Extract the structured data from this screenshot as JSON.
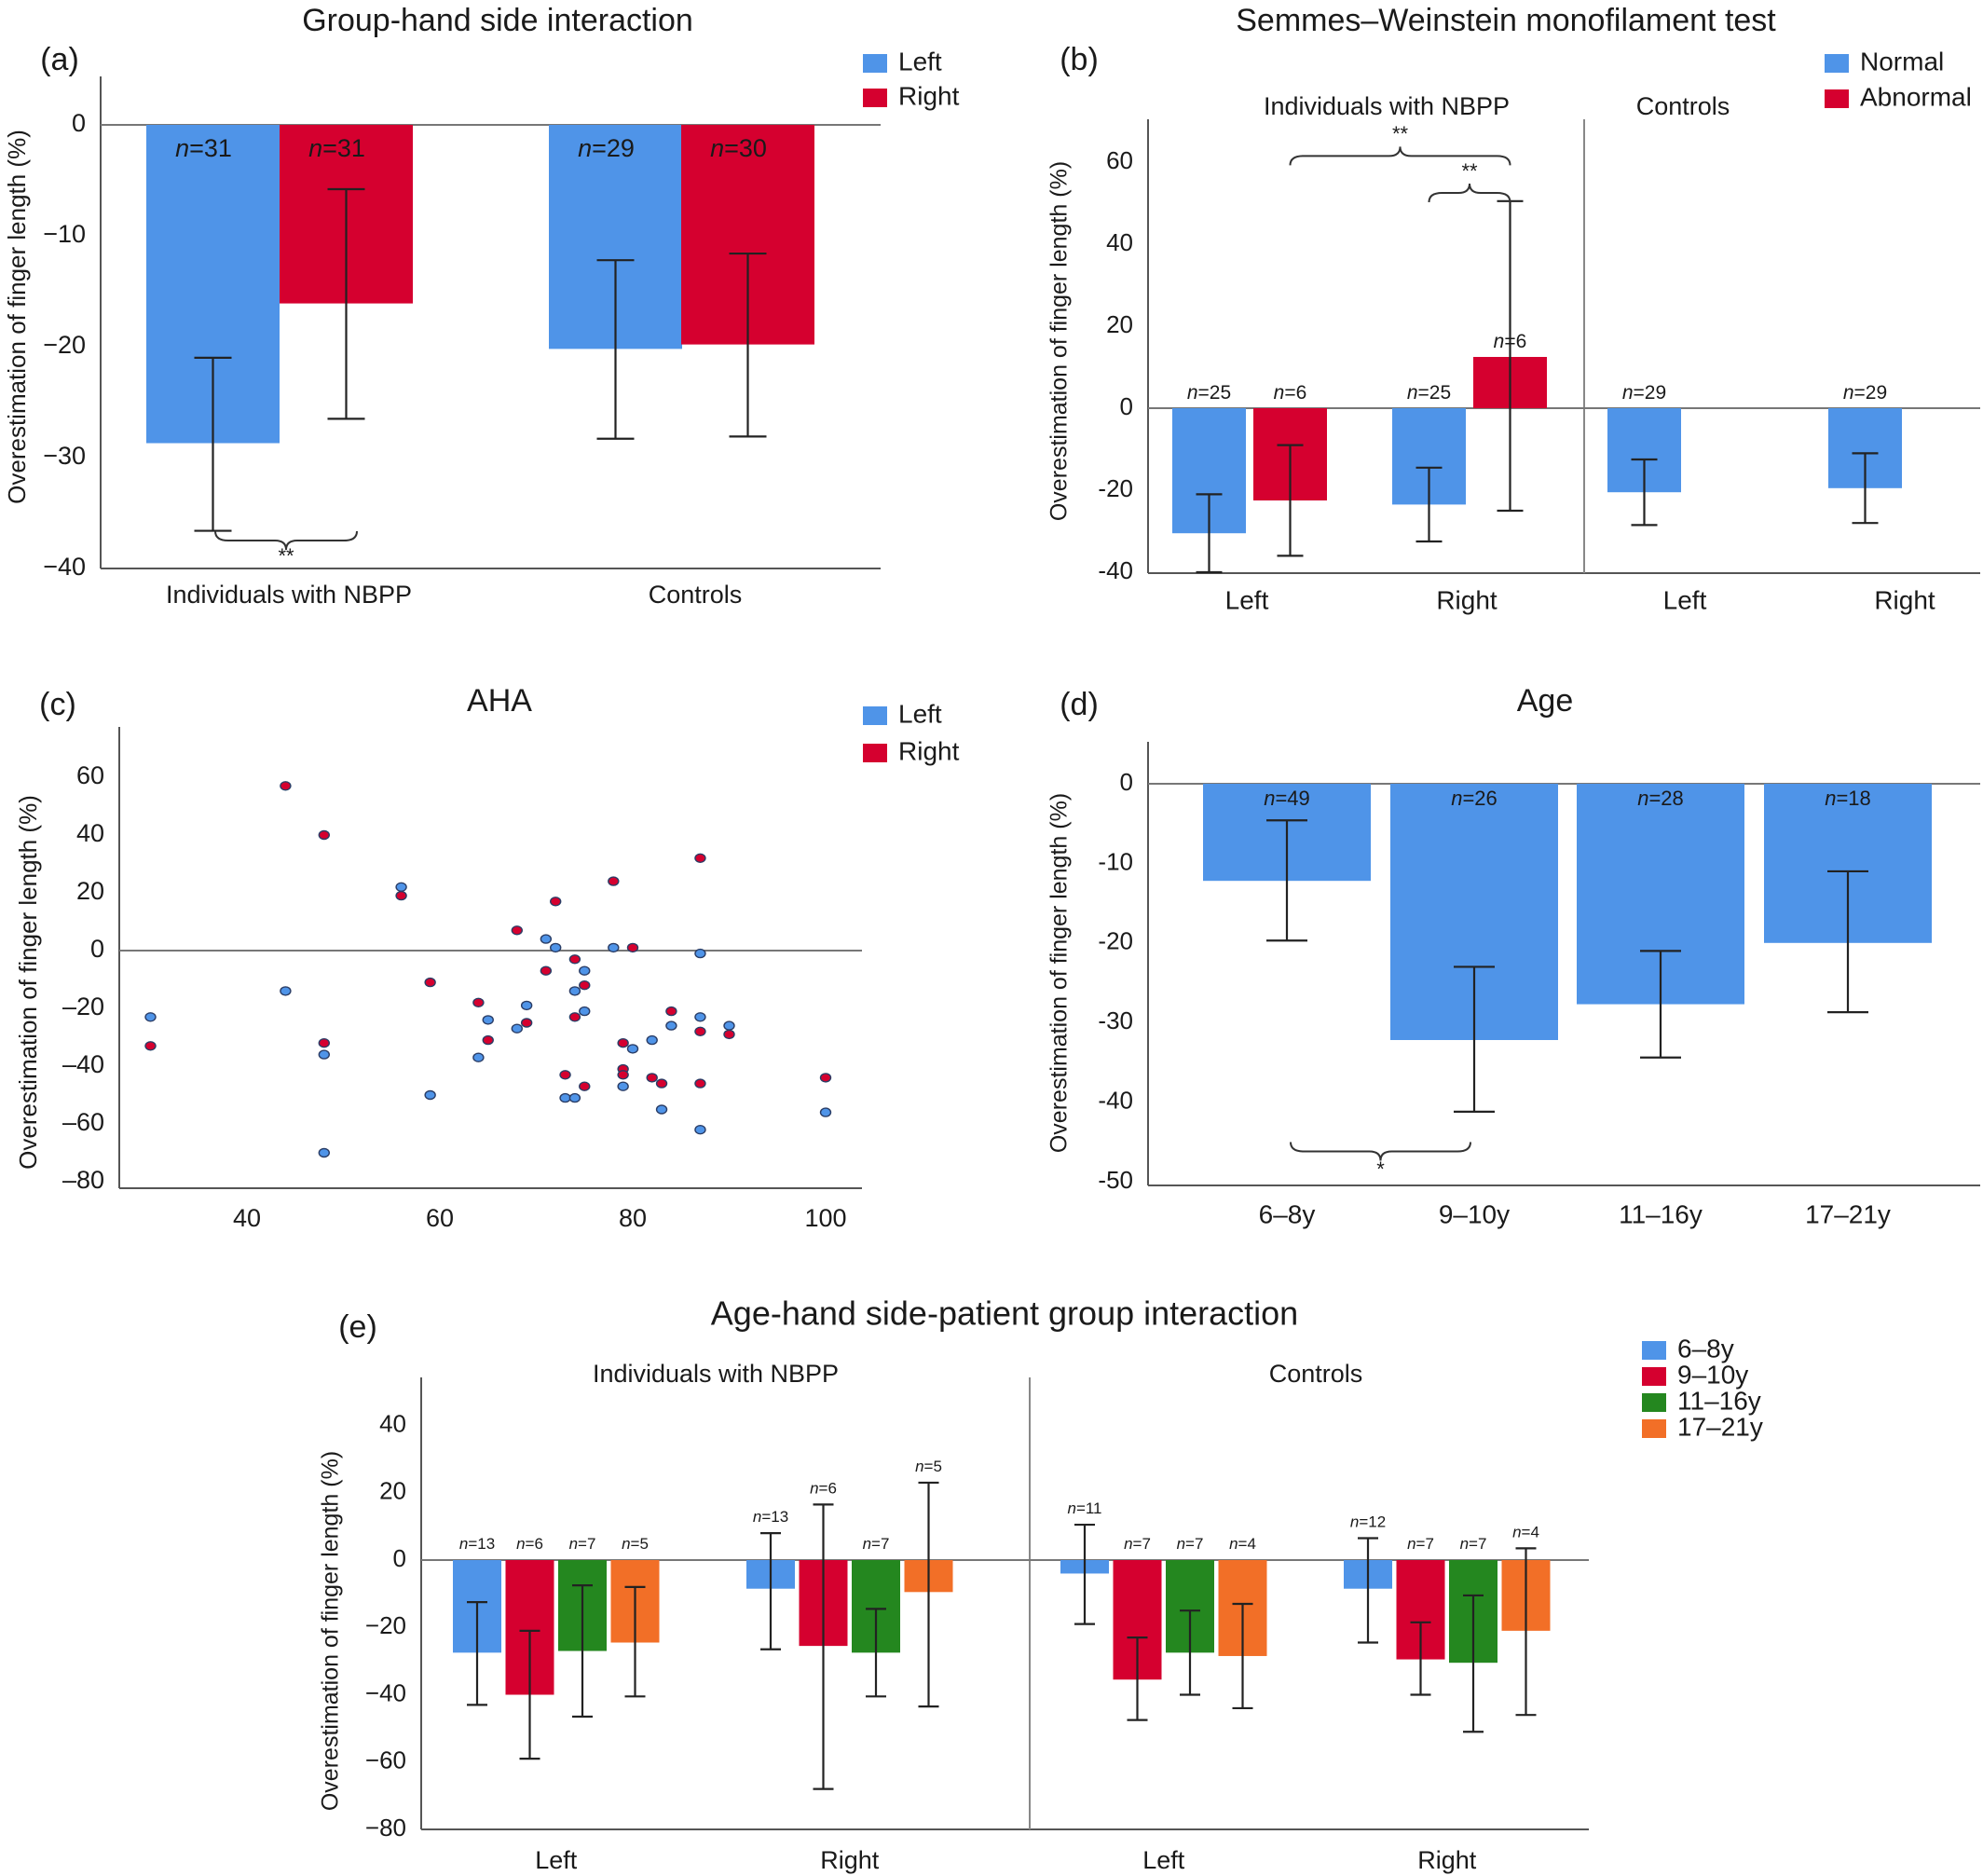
{
  "colors": {
    "blue": "#4f94e8",
    "red": "#d5002f",
    "green": "#24871f",
    "orange": "#f26f27"
  },
  "chart_data": [
    {
      "id": "a",
      "type": "bar",
      "panel_label": "(a)",
      "title": "Group-hand side interaction",
      "ylabel": "Overestimation of finger length (%)",
      "ylim": [
        -40,
        4
      ],
      "yticks": [
        0,
        -10,
        -20,
        -30,
        -40
      ],
      "ytick_labels": [
        "0",
        "−10",
        "−20",
        "−30",
        "−40"
      ],
      "legend": [
        "Left",
        "Right"
      ],
      "legend_position": "top-right",
      "categories": [
        "Individuals with NBPP",
        "Controls"
      ],
      "series": [
        {
          "name": "Left",
          "color": "blue",
          "values": [
            -28.7,
            -20.2
          ],
          "err_low": [
            -36.6,
            -28.3
          ],
          "err_high": [
            -21.0,
            -12.2
          ],
          "n": [
            "n=31",
            "n=29"
          ]
        },
        {
          "name": "Right",
          "color": "red",
          "values": [
            -16.1,
            -19.8
          ],
          "err_low": [
            -26.5,
            -28.1
          ],
          "err_high": [
            -5.8,
            -11.6
          ],
          "n": [
            "n=31",
            "n=30"
          ]
        }
      ],
      "annotations": [
        {
          "text": "**",
          "group": 0,
          "from": 0,
          "to": 1,
          "y": -37.4
        }
      ]
    },
    {
      "id": "b",
      "type": "bar",
      "panel_label": "(b)",
      "title": "Semmes–Weinstein monofilament test",
      "ylabel": "Overestimation of finger length (%)",
      "ylim": [
        -40,
        70
      ],
      "yticks": [
        60,
        40,
        20,
        0,
        -20,
        -40
      ],
      "ytick_labels": [
        "60",
        "40",
        "20",
        "0",
        "-20",
        "-40"
      ],
      "legend": [
        "Normal",
        "Abnormal"
      ],
      "legend_position": "top-right",
      "subpanels": [
        {
          "label": "Individuals with NBPP",
          "categories": [
            "Left",
            "Right"
          ],
          "bars": [
            {
              "cat": 0,
              "slot": 0,
              "color": "blue",
              "value": -30.5,
              "err_low": -40.0,
              "err_high": -21.0,
              "n": "n=25"
            },
            {
              "cat": 0,
              "slot": 1,
              "color": "red",
              "value": -22.5,
              "err_low": -36.0,
              "err_high": -9.0,
              "n": "n=6"
            },
            {
              "cat": 1,
              "slot": 0,
              "color": "blue",
              "value": -23.5,
              "err_low": -32.5,
              "err_high": -14.5,
              "n": "n=25"
            },
            {
              "cat": 1,
              "slot": 1,
              "color": "red",
              "value": 12.5,
              "err_low": -25.0,
              "err_high": 50.5,
              "n": "n=6"
            }
          ]
        },
        {
          "label": "Controls",
          "categories": [
            "Left",
            "Right"
          ],
          "bars": [
            {
              "cat": 0,
              "slot": 0,
              "color": "blue",
              "value": -20.5,
              "err_low": -28.5,
              "err_high": -12.5,
              "n": "n=29"
            },
            {
              "cat": 1,
              "slot": 0,
              "color": "blue",
              "value": -19.5,
              "err_low": -28.0,
              "err_high": -11.0,
              "n": "n=29"
            }
          ]
        }
      ],
      "annotations": [
        {
          "text": "**",
          "from": [
            0,
            0,
            1
          ],
          "to": [
            0,
            1,
            1
          ],
          "y": 61.5
        },
        {
          "text": "**",
          "from": [
            0,
            1,
            0
          ],
          "to": [
            0,
            1,
            1
          ],
          "y": 52.5
        }
      ]
    },
    {
      "id": "c",
      "type": "scatter",
      "panel_label": "(c)",
      "title": "AHA",
      "ylabel": "Overestimation of finger length (%)",
      "xlim": [
        29,
        104
      ],
      "ylim": [
        -80,
        76
      ],
      "xticks": [
        40,
        60,
        80,
        100
      ],
      "yticks": [
        60,
        40,
        20,
        0,
        -20,
        -40,
        -60,
        -80
      ],
      "ytick_labels": [
        "60",
        "40",
        "20",
        "0",
        "–20",
        "–40",
        "–60",
        "–80"
      ],
      "legend": [
        "Left",
        "Right"
      ],
      "legend_position": "top-right",
      "series": [
        {
          "name": "Left",
          "color": "blue",
          "points": [
            [
              30,
              -23
            ],
            [
              44,
              -14
            ],
            [
              48,
              -36
            ],
            [
              48,
              -70
            ],
            [
              56,
              22
            ],
            [
              59,
              -50
            ],
            [
              64,
              -37
            ],
            [
              65,
              -24
            ],
            [
              68,
              -27
            ],
            [
              69,
              -19
            ],
            [
              71,
              4
            ],
            [
              72,
              1
            ],
            [
              73,
              -51
            ],
            [
              74,
              -51
            ],
            [
              74,
              -14
            ],
            [
              75,
              -7
            ],
            [
              75,
              -21
            ],
            [
              78,
              1
            ],
            [
              79,
              -47
            ],
            [
              80,
              -34
            ],
            [
              82,
              -31
            ],
            [
              83,
              -55
            ],
            [
              84,
              -26
            ],
            [
              87,
              -1
            ],
            [
              87,
              -23
            ],
            [
              87,
              -62
            ],
            [
              90,
              -26
            ],
            [
              100,
              -56
            ]
          ]
        },
        {
          "name": "Right",
          "color": "red",
          "points": [
            [
              30,
              -33
            ],
            [
              44,
              57
            ],
            [
              48,
              40
            ],
            [
              48,
              -32
            ],
            [
              56,
              19
            ],
            [
              59,
              -11
            ],
            [
              64,
              -18
            ],
            [
              65,
              -31
            ],
            [
              69,
              -25
            ],
            [
              68,
              7
            ],
            [
              71,
              -7
            ],
            [
              72,
              17
            ],
            [
              73,
              -43
            ],
            [
              74,
              -3
            ],
            [
              74,
              -23
            ],
            [
              75,
              -47
            ],
            [
              75,
              -12
            ],
            [
              78,
              24
            ],
            [
              79,
              -32
            ],
            [
              79,
              -41
            ],
            [
              79,
              -43
            ],
            [
              80,
              1
            ],
            [
              82,
              -44
            ],
            [
              83,
              -46
            ],
            [
              84,
              -21
            ],
            [
              87,
              32
            ],
            [
              87,
              -28
            ],
            [
              87,
              -46
            ],
            [
              90,
              -29
            ],
            [
              100,
              -44
            ]
          ]
        }
      ]
    },
    {
      "id": "d",
      "type": "bar",
      "panel_label": "(d)",
      "title": "Age",
      "ylabel": "Overestimation of finger length (%)",
      "ylim": [
        -50,
        5
      ],
      "yticks": [
        0,
        -10,
        -20,
        -30,
        -40,
        -50
      ],
      "ytick_labels": [
        "0",
        "-10",
        "-20",
        "-30",
        "-40",
        "-50"
      ],
      "categories": [
        "6–8y",
        "9–10y",
        "11–16y",
        "17–21y"
      ],
      "values": [
        -12.2,
        -32.2,
        -27.7,
        -20.0
      ],
      "err_low": [
        -19.7,
        -41.2,
        -34.4,
        -28.7
      ],
      "err_high": [
        -4.6,
        -23.0,
        -21.0,
        -11.0
      ],
      "n": [
        "n=49",
        "n=26",
        "n=28",
        "n=18"
      ],
      "color": "blue",
      "annotations": [
        {
          "text": "*",
          "from": 0,
          "to": 1,
          "y": -46.2
        }
      ]
    },
    {
      "id": "e",
      "type": "bar",
      "panel_label": "(e)",
      "title": "Age-hand side-patient group interaction",
      "ylabel": "Overestimation of finger length (%)",
      "ylim": [
        -80,
        47
      ],
      "yticks": [
        40,
        20,
        0,
        -20,
        -40,
        -60,
        -80
      ],
      "ytick_labels": [
        "40",
        "20",
        "0",
        "−20",
        "−40",
        "−60",
        "−80"
      ],
      "legend": [
        "6–8y",
        "9–10y",
        "11–16y",
        "17–21y"
      ],
      "legend_colors": [
        "blue",
        "red",
        "green",
        "orange"
      ],
      "legend_position": "right",
      "subpanels": [
        {
          "label": "Individuals with NBPP",
          "groups": [
            {
              "label": "Left",
              "values": [
                -27.5,
                -40.0,
                -27.0,
                -24.5
              ],
              "err_low": [
                -43.0,
                -59.0,
                -46.5,
                -40.5
              ],
              "err_high": [
                -12.5,
                -21.0,
                -7.5,
                -8.0
              ],
              "n": [
                "n=13",
                "n=6",
                "n=7",
                "n=5"
              ]
            },
            {
              "label": "Right",
              "values": [
                -8.5,
                -25.5,
                -27.5,
                -9.5
              ],
              "err_low": [
                -26.5,
                -68.0,
                -40.5,
                -43.5
              ],
              "err_high": [
                8.0,
                16.5,
                -14.5,
                23.0
              ],
              "n": [
                "n=13",
                "n=6",
                "n=7",
                "n=5"
              ]
            }
          ]
        },
        {
          "label": "Controls",
          "groups": [
            {
              "label": "Left",
              "values": [
                -4.0,
                -35.5,
                -27.5,
                -28.5
              ],
              "err_low": [
                -19.0,
                -47.5,
                -40.0,
                -44.0
              ],
              "err_high": [
                10.5,
                -23.0,
                -15.0,
                -13.0
              ],
              "n": [
                "n=11",
                "n=7",
                "n=7",
                "n=4"
              ]
            },
            {
              "label": "Right",
              "values": [
                -8.5,
                -29.5,
                -30.5,
                -21.0
              ],
              "err_low": [
                -24.5,
                -40.0,
                -51.0,
                -46.0
              ],
              "err_high": [
                6.5,
                -18.5,
                -10.5,
                3.5
              ],
              "n": [
                "n=12",
                "n=7",
                "n=7",
                "n=4"
              ]
            }
          ]
        }
      ]
    }
  ]
}
